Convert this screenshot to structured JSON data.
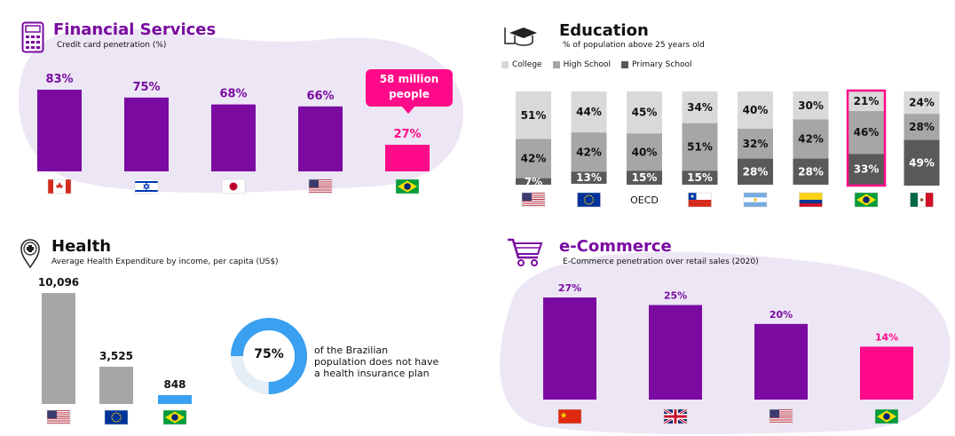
{
  "colors": {
    "purple": "#7a0aa0",
    "pink": "#ff0a88",
    "gray_light": "#d9d9d9",
    "gray_mid": "#a6a6a6",
    "gray_dark": "#595959",
    "blue": "#3aa0f0",
    "blob": "#ece6f5"
  },
  "financial": {
    "title": "Financial Services",
    "subtitle": "Credit card penetration (%)",
    "icon": "calculator-icon",
    "callout": "58 million people",
    "chart_data": {
      "type": "bar",
      "categories": [
        "Canada",
        "Israel",
        "Japan",
        "United States",
        "Brazil"
      ],
      "flags": [
        "flag-canada",
        "flag-israel",
        "flag-japan",
        "flag-usa",
        "flag-brazil"
      ],
      "values": [
        83,
        75,
        68,
        66,
        27
      ],
      "labels": [
        "83%",
        "75%",
        "68%",
        "66%",
        "27%"
      ],
      "highlight": [
        false,
        false,
        false,
        false,
        true
      ]
    }
  },
  "education": {
    "title": "Education",
    "subtitle": "% of population above 25 years old",
    "icon": "graduation-cap-icon",
    "chart_data": {
      "type": "bar",
      "stacked": true,
      "legend": [
        "College",
        "High School",
        "Primary School"
      ],
      "categories": [
        "USA",
        "EU",
        "OECD",
        "Chile",
        "Argentina",
        "Colombia",
        "Brazil",
        "Mexico"
      ],
      "flags": [
        "flag-usa",
        "flag-eu",
        "",
        "flag-chile",
        "flag-argentina",
        "flag-colombia",
        "flag-brazil",
        "flag-mexico"
      ],
      "category_labels": [
        "",
        "",
        "OECD",
        "",
        "",
        "",
        "",
        ""
      ],
      "series": [
        {
          "name": "College",
          "values": [
            51,
            44,
            45,
            34,
            40,
            30,
            21,
            24
          ],
          "labels": [
            "51%",
            "44%",
            "45%",
            "34%",
            "40%",
            "30%",
            "21%",
            "24%"
          ]
        },
        {
          "name": "High School",
          "values": [
            42,
            42,
            40,
            51,
            32,
            42,
            46,
            28
          ],
          "labels": [
            "42%",
            "42%",
            "40%",
            "51%",
            "32%",
            "42%",
            "46%",
            "28%"
          ]
        },
        {
          "name": "Primary School",
          "values": [
            7,
            13,
            15,
            15,
            28,
            28,
            33,
            49
          ],
          "labels": [
            "7%",
            "13%",
            "15%",
            "15%",
            "28%",
            "28%",
            "33%",
            "49%"
          ]
        }
      ],
      "highlight": [
        false,
        false,
        false,
        false,
        false,
        false,
        true,
        false
      ]
    }
  },
  "health": {
    "title": "Health",
    "subtitle": "Average Health Expenditure by income, per capita (US$)",
    "icon": "medical-cross-icon",
    "chart_data": {
      "type": "bar",
      "categories": [
        "United States",
        "European Union",
        "Brazil"
      ],
      "flags": [
        "flag-usa",
        "flag-eu",
        "flag-brazil"
      ],
      "values": [
        10096,
        3525,
        848
      ],
      "labels": [
        "10,096",
        "3,525",
        "848"
      ],
      "highlight": [
        false,
        false,
        true
      ]
    },
    "donut": {
      "value": 75,
      "label": "75%",
      "text_lines": [
        "of the Brazilian",
        "population does not have",
        "a health insurance plan"
      ]
    }
  },
  "ecommerce": {
    "title": "e-Commerce",
    "subtitle": "E-Commerce penetration over retail sales (2020)",
    "icon": "shopping-cart-icon",
    "chart_data": {
      "type": "bar",
      "categories": [
        "China",
        "United Kingdom",
        "United States",
        "Brazil"
      ],
      "flags": [
        "flag-china",
        "flag-uk",
        "flag-usa",
        "flag-brazil"
      ],
      "values": [
        27,
        25,
        20,
        14
      ],
      "labels": [
        "27%",
        "25%",
        "20%",
        "14%"
      ],
      "highlight": [
        false,
        false,
        false,
        true
      ]
    }
  }
}
